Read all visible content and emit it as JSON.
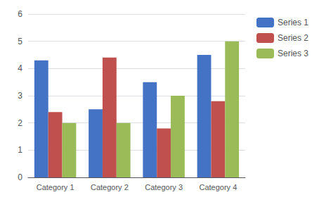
{
  "chart_data": {
    "type": "bar",
    "categories": [
      "Category 1",
      "Category 2",
      "Category 3",
      "Category 4"
    ],
    "series": [
      {
        "name": "Series 1",
        "color": "#4472C4",
        "values": [
          4.3,
          2.5,
          3.5,
          4.5
        ]
      },
      {
        "name": "Series 2",
        "color": "#C0504D",
        "values": [
          2.4,
          4.4,
          1.8,
          2.8
        ]
      },
      {
        "name": "Series 3",
        "color": "#9BBB59",
        "values": [
          2.0,
          2.0,
          3.0,
          5.0
        ]
      }
    ],
    "ylim": [
      0,
      6
    ],
    "yticks": [
      0,
      1,
      2,
      3,
      4,
      5,
      6
    ],
    "grid": true,
    "legend": "right"
  }
}
